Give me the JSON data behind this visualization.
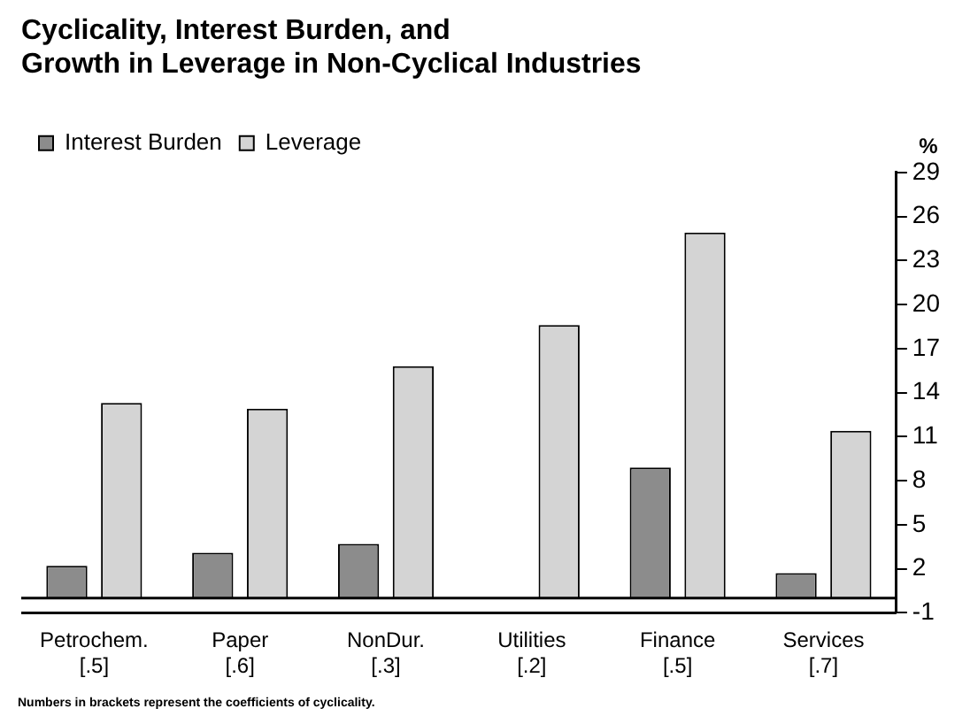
{
  "chart_data": {
    "type": "bar",
    "title": "Cyclicality, Interest Burden, and\nGrowth in Leverage in Non-Cyclical Industries",
    "ylabel": "%",
    "categories": [
      "Petrochem.\n[.5]",
      "Paper\n[.6]",
      "NonDur.\n[.3]",
      "Utilities\n[.2]",
      "Finance\n[.5]",
      "Services\n[.7]"
    ],
    "series": [
      {
        "name": "Interest Burden",
        "color": "#8c8c8c",
        "values": [
          2.2,
          3.1,
          3.7,
          null,
          8.9,
          1.7
        ]
      },
      {
        "name": "Leverage",
        "color": "#d4d4d4",
        "values": [
          13.3,
          12.9,
          15.8,
          18.6,
          24.9,
          11.4
        ]
      }
    ],
    "ylim": [
      -1,
      29
    ],
    "yticks": [
      -1,
      2,
      5,
      8,
      11,
      14,
      17,
      20,
      23,
      26,
      29
    ],
    "grid": false,
    "legend": "top left",
    "ref_lines": [
      {
        "axis": "y",
        "value": 0
      }
    ],
    "annotations": [
      "Numbers in brackets represent the coefficients of cyclicality."
    ]
  }
}
